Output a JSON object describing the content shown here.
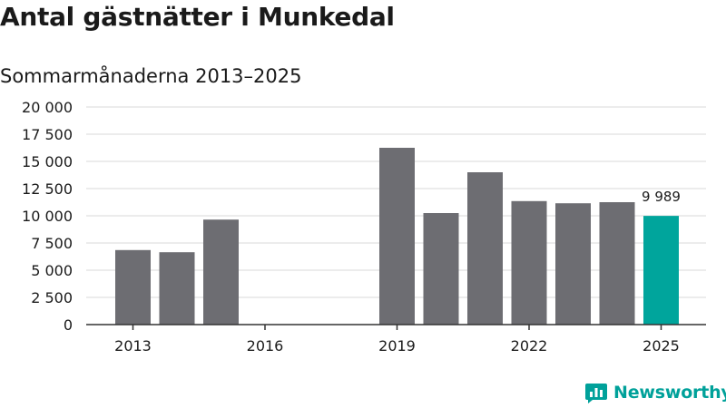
{
  "title": "Antal gästnätter i Munkedal",
  "subtitle": "Sommarmånaderna 2013–2025",
  "brand": {
    "name": "Newsworthy",
    "icon": "newsworthy-logo-icon",
    "color": "#00a19a"
  },
  "chart_data": {
    "type": "bar",
    "categories": [
      "2013",
      "2014",
      "2015",
      "2016",
      "2017",
      "2018",
      "2019",
      "2020",
      "2021",
      "2022",
      "2023",
      "2024",
      "2025"
    ],
    "series": [
      {
        "values": [
          6850,
          6650,
          9650,
          null,
          null,
          null,
          16250,
          10250,
          14000,
          11350,
          11150,
          11250,
          9989
        ]
      }
    ],
    "x_tick_labels": [
      "2013",
      "2016",
      "2019",
      "2022",
      "2025"
    ],
    "y_tick_labels": [
      "0",
      "2 500",
      "5 000",
      "7 500",
      "10 000",
      "12 500",
      "15 000",
      "17 500",
      "20 000"
    ],
    "ylim": [
      0,
      20000
    ],
    "y_step": 2500,
    "grid": true,
    "highlight_index": 12,
    "data_labels": [
      {
        "index": 12,
        "text": "9 989"
      }
    ],
    "colors": {
      "bar": "#6d6d72",
      "highlight": "#00a59c",
      "grid": "#d9d9d9",
      "axis": "#333333"
    }
  }
}
